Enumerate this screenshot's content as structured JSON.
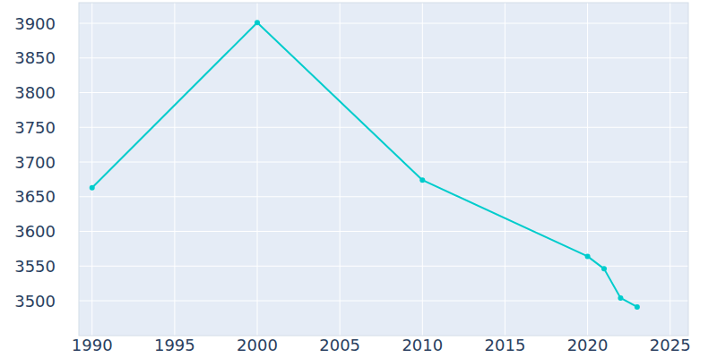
{
  "chart_data": {
    "type": "line",
    "x": [
      1990,
      2000,
      2010,
      2020,
      2021,
      2022,
      2023
    ],
    "values": [
      3663,
      3901,
      3674,
      3564,
      3546,
      3504,
      3491
    ],
    "color": "#00cccc",
    "marker": "circle",
    "xlim": [
      1989.2,
      2026.1
    ],
    "xticks": [
      1990,
      1995,
      2000,
      2005,
      2010,
      2015,
      2020,
      2025
    ],
    "ylim": [
      3449.7,
      3929.7
    ],
    "yticks": [
      3500,
      3550,
      3600,
      3650,
      3700,
      3750,
      3800,
      3850,
      3900
    ],
    "grid": true
  }
}
